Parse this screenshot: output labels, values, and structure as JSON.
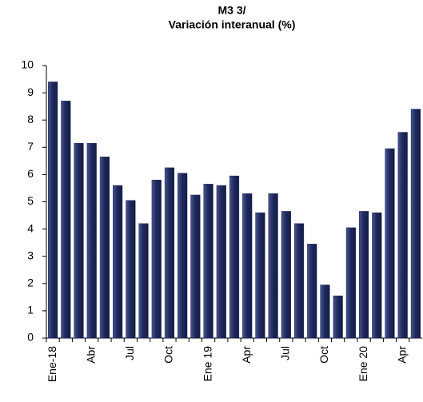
{
  "chart_data": {
    "type": "bar",
    "title": "M3 3/",
    "subtitle": "Variación interanual (%)",
    "categories": [
      "Ene-18",
      null,
      null,
      "Abr",
      null,
      null,
      "Jul",
      null,
      null,
      "Oct",
      null,
      null,
      "Ene 19",
      null,
      null,
      "Apr",
      null,
      null,
      "Jul",
      null,
      null,
      "Oct",
      null,
      null,
      "Ene 20",
      null,
      null,
      "Apr",
      null
    ],
    "values": [
      9.4,
      8.7,
      7.15,
      7.15,
      6.65,
      5.6,
      5.05,
      4.2,
      5.8,
      6.25,
      6.05,
      5.25,
      5.65,
      5.6,
      5.95,
      5.3,
      4.6,
      5.3,
      4.65,
      4.2,
      3.45,
      1.95,
      1.55,
      4.05,
      4.65,
      4.6,
      6.95,
      7.55,
      8.4
    ],
    "color": "#1f2a5e",
    "ylim": [
      0,
      10
    ],
    "yticks": [
      0,
      1,
      2,
      3,
      4,
      5,
      6,
      7,
      8,
      9,
      10
    ],
    "grid": false
  }
}
